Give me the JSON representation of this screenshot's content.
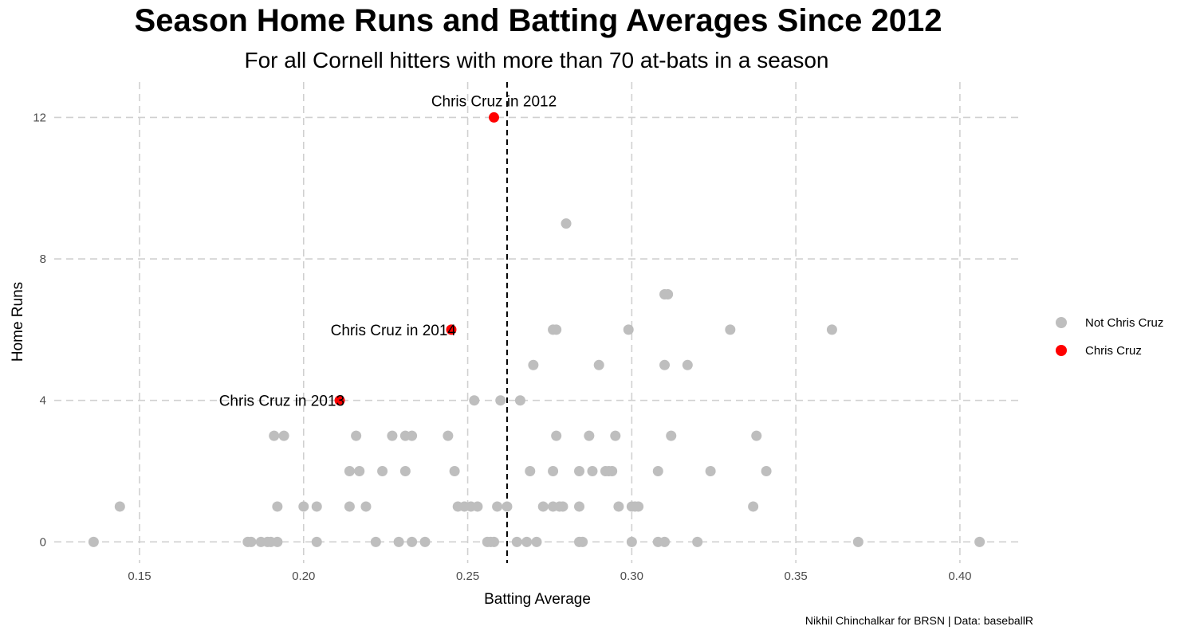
{
  "chart_data": {
    "type": "scatter",
    "title": "Season Home Runs and Batting Averages Since 2012",
    "subtitle": "For all Cornell hitters with more than 70 at-bats in a season",
    "xlabel": "Batting Average",
    "ylabel": "Home Runs",
    "xlim": [
      0.124,
      0.418
    ],
    "ylim": [
      -0.6,
      13.0
    ],
    "x_ticks": [
      0.15,
      0.2,
      0.25,
      0.3,
      0.35,
      0.4
    ],
    "x_tick_labels": [
      "0.15",
      "0.20",
      "0.25",
      "0.30",
      "0.35",
      "0.40"
    ],
    "y_ticks": [
      0,
      4,
      8,
      12
    ],
    "y_tick_labels": [
      "0",
      "4",
      "8",
      "12"
    ],
    "grid": true,
    "reference_line": {
      "x": 0.262,
      "style": "dashed",
      "color": "#000000"
    },
    "legend": {
      "placement": "right",
      "entries": [
        "Not Chris Cruz",
        "Chris Cruz"
      ]
    },
    "caption": "Nikhil Chinchalkar for BRSN | Data: baseballR",
    "series": [
      {
        "name": "Not Chris Cruz",
        "color": "#bebebe",
        "points": [
          [
            0.136,
            0
          ],
          [
            0.183,
            0
          ],
          [
            0.184,
            0
          ],
          [
            0.187,
            0
          ],
          [
            0.189,
            0
          ],
          [
            0.19,
            0
          ],
          [
            0.192,
            0
          ],
          [
            0.204,
            0
          ],
          [
            0.222,
            0
          ],
          [
            0.229,
            0
          ],
          [
            0.233,
            0
          ],
          [
            0.237,
            0
          ],
          [
            0.256,
            0
          ],
          [
            0.257,
            0
          ],
          [
            0.258,
            0
          ],
          [
            0.265,
            0
          ],
          [
            0.268,
            0
          ],
          [
            0.271,
            0
          ],
          [
            0.284,
            0
          ],
          [
            0.285,
            0
          ],
          [
            0.3,
            0
          ],
          [
            0.308,
            0
          ],
          [
            0.31,
            0
          ],
          [
            0.32,
            0
          ],
          [
            0.369,
            0
          ],
          [
            0.406,
            0
          ],
          [
            0.144,
            1
          ],
          [
            0.192,
            1
          ],
          [
            0.2,
            1
          ],
          [
            0.204,
            1
          ],
          [
            0.214,
            1
          ],
          [
            0.219,
            1
          ],
          [
            0.247,
            1
          ],
          [
            0.249,
            1
          ],
          [
            0.251,
            1
          ],
          [
            0.253,
            1
          ],
          [
            0.259,
            1
          ],
          [
            0.262,
            1
          ],
          [
            0.273,
            1
          ],
          [
            0.276,
            1
          ],
          [
            0.278,
            1
          ],
          [
            0.279,
            1
          ],
          [
            0.284,
            1
          ],
          [
            0.296,
            1
          ],
          [
            0.3,
            1
          ],
          [
            0.301,
            1
          ],
          [
            0.302,
            1
          ],
          [
            0.337,
            1
          ],
          [
            0.214,
            2
          ],
          [
            0.217,
            2
          ],
          [
            0.224,
            2
          ],
          [
            0.231,
            2
          ],
          [
            0.246,
            2
          ],
          [
            0.269,
            2
          ],
          [
            0.276,
            2
          ],
          [
            0.284,
            2
          ],
          [
            0.288,
            2
          ],
          [
            0.292,
            2
          ],
          [
            0.293,
            2
          ],
          [
            0.294,
            2
          ],
          [
            0.308,
            2
          ],
          [
            0.324,
            2
          ],
          [
            0.341,
            2
          ],
          [
            0.191,
            3
          ],
          [
            0.194,
            3
          ],
          [
            0.216,
            3
          ],
          [
            0.227,
            3
          ],
          [
            0.231,
            3
          ],
          [
            0.233,
            3
          ],
          [
            0.244,
            3
          ],
          [
            0.277,
            3
          ],
          [
            0.287,
            3
          ],
          [
            0.295,
            3
          ],
          [
            0.312,
            3
          ],
          [
            0.338,
            3
          ],
          [
            0.252,
            4
          ],
          [
            0.26,
            4
          ],
          [
            0.266,
            4
          ],
          [
            0.27,
            5
          ],
          [
            0.29,
            5
          ],
          [
            0.31,
            5
          ],
          [
            0.317,
            5
          ],
          [
            0.276,
            6
          ],
          [
            0.277,
            6
          ],
          [
            0.299,
            6
          ],
          [
            0.33,
            6
          ],
          [
            0.361,
            6
          ],
          [
            0.31,
            7
          ],
          [
            0.311,
            7
          ],
          [
            0.28,
            9
          ]
        ]
      },
      {
        "name": "Chris Cruz",
        "color": "#ff0000",
        "points": [
          [
            0.258,
            12,
            "Chris Cruz in 2012"
          ],
          [
            0.245,
            6,
            "Chris Cruz in 2014"
          ],
          [
            0.211,
            4,
            "Chris Cruz in 2013"
          ]
        ]
      }
    ]
  }
}
